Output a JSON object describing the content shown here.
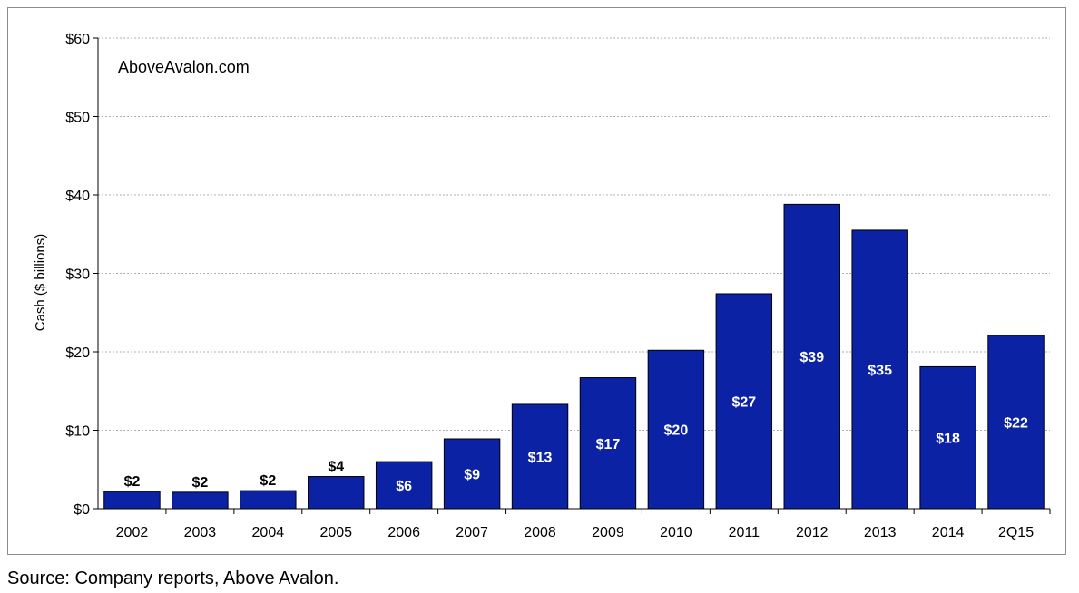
{
  "watermark": "AboveAvalon.com",
  "source": "Source: Company reports, Above Avalon.",
  "colors": {
    "bar": "#0B22A5",
    "bar_stroke": "#000000",
    "grid": "#b0b0b0",
    "label_inside": "#ffffff",
    "label_outside": "#000000"
  },
  "chart_data": {
    "type": "bar",
    "categories": [
      "2002",
      "2003",
      "2004",
      "2005",
      "2006",
      "2007",
      "2008",
      "2009",
      "2010",
      "2011",
      "2012",
      "2013",
      "2014",
      "2Q15"
    ],
    "values": [
      2.2,
      2.1,
      2.3,
      4.1,
      6.0,
      8.9,
      13.3,
      16.7,
      20.2,
      27.4,
      38.8,
      35.5,
      18.1,
      22.1
    ],
    "data_labels": [
      "$2",
      "$2",
      "$2",
      "$4",
      "$6",
      "$9",
      "$13",
      "$17",
      "$20",
      "$27",
      "$39",
      "$35",
      "$18",
      "$22"
    ],
    "title": "",
    "xlabel": "",
    "ylabel": "Cash ($ billions)",
    "ylim": [
      0,
      60
    ],
    "yticks": [
      0,
      10,
      20,
      30,
      40,
      50,
      60
    ],
    "ytick_labels": [
      "$0",
      "$10",
      "$20",
      "$30",
      "$40",
      "$50",
      "$60"
    ],
    "grid": true,
    "legend": "none"
  }
}
